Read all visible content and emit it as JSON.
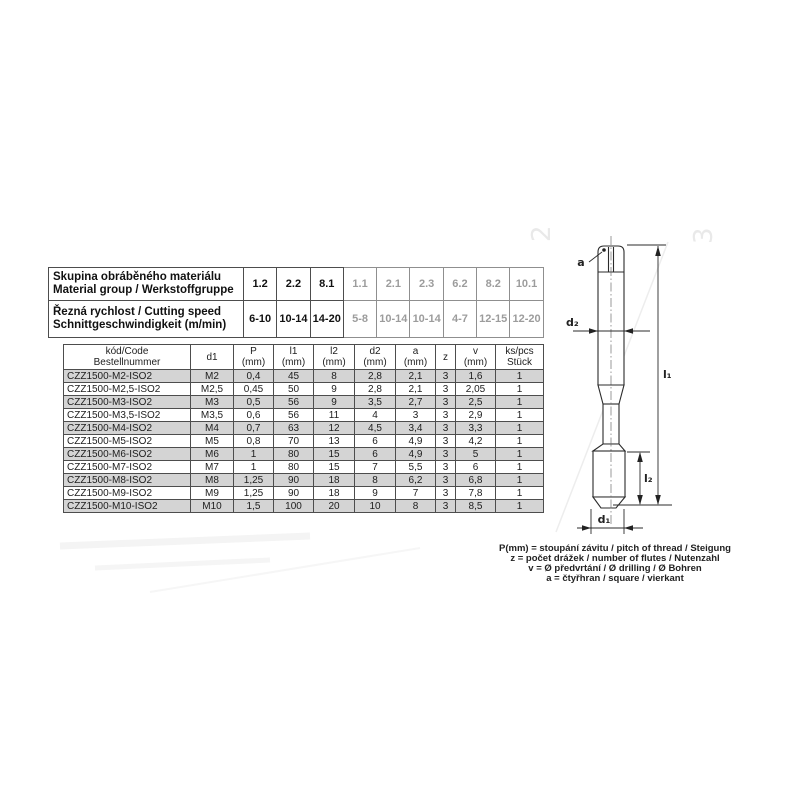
{
  "material_table": {
    "row1_label_line1": "Skupina obráběného materiálu",
    "row1_label_line2": "Material group / Werkstoffgruppe",
    "row2_label_line1": "Řezná rychlost / Cutting speed",
    "row2_label_line2": "Schnittgeschwindigkeit (m/min)",
    "groups": [
      "1.2",
      "2.2",
      "8.1",
      "1.1",
      "2.1",
      "2.3",
      "6.2",
      "8.2",
      "10.1"
    ],
    "speeds": [
      "6-10",
      "10-14",
      "14-20",
      "5-8",
      "10-14",
      "10-14",
      "4-7",
      "12-15",
      "12-20"
    ],
    "active_count": 3,
    "active_color": "#111111",
    "inactive_color": "#9c9c9c"
  },
  "size_table": {
    "headers": [
      [
        "kód/Code",
        "Bestellnummer"
      ],
      [
        "d1",
        ""
      ],
      [
        "P",
        "(mm)"
      ],
      [
        "l1",
        "(mm)"
      ],
      [
        "l2",
        "(mm)"
      ],
      [
        "d2",
        "(mm)"
      ],
      [
        "a",
        "(mm)"
      ],
      [
        "z",
        ""
      ],
      [
        "v",
        "(mm)"
      ],
      [
        "ks/pcs",
        "Stück"
      ]
    ],
    "rows": [
      [
        "CZZ1500-M2-ISO2",
        "M2",
        "0,4",
        "45",
        "8",
        "2,8",
        "2,1",
        "3",
        "1,6",
        "1"
      ],
      [
        "CZZ1500-M2,5-ISO2",
        "M2,5",
        "0,45",
        "50",
        "9",
        "2,8",
        "2,1",
        "3",
        "2,05",
        "1"
      ],
      [
        "CZZ1500-M3-ISO2",
        "M3",
        "0,5",
        "56",
        "9",
        "3,5",
        "2,7",
        "3",
        "2,5",
        "1"
      ],
      [
        "CZZ1500-M3,5-ISO2",
        "M3,5",
        "0,6",
        "56",
        "11",
        "4",
        "3",
        "3",
        "2,9",
        "1"
      ],
      [
        "CZZ1500-M4-ISO2",
        "M4",
        "0,7",
        "63",
        "12",
        "4,5",
        "3,4",
        "3",
        "3,3",
        "1"
      ],
      [
        "CZZ1500-M5-ISO2",
        "M5",
        "0,8",
        "70",
        "13",
        "6",
        "4,9",
        "3",
        "4,2",
        "1"
      ],
      [
        "CZZ1500-M6-ISO2",
        "M6",
        "1",
        "80",
        "15",
        "6",
        "4,9",
        "3",
        "5",
        "1"
      ],
      [
        "CZZ1500-M7-ISO2",
        "M7",
        "1",
        "80",
        "15",
        "7",
        "5,5",
        "3",
        "6",
        "1"
      ],
      [
        "CZZ1500-M8-ISO2",
        "M8",
        "1,25",
        "90",
        "18",
        "8",
        "6,2",
        "3",
        "6,8",
        "1"
      ],
      [
        "CZZ1500-M9-ISO2",
        "M9",
        "1,25",
        "90",
        "18",
        "9",
        "7",
        "3",
        "7,8",
        "1"
      ],
      [
        "CZZ1500-M10-ISO2",
        "M10",
        "1,5",
        "100",
        "20",
        "10",
        "8",
        "3",
        "8,5",
        "1"
      ]
    ],
    "shade_color": "#d4d4d4"
  },
  "notes": [
    "P(mm) = stoupání závitu / pitch of thread / Steigung",
    "z = počet drážek / number of flutes / Nutenzahl",
    "v = Ø předvrtání / Ø drilling / Ø Bohren",
    "a = čtyřhran / square / vierkant"
  ],
  "drawing": {
    "labels": {
      "a": "a",
      "d2": "d₂",
      "l1": "l₁",
      "l2": "l₂",
      "d1": "d₁"
    }
  }
}
